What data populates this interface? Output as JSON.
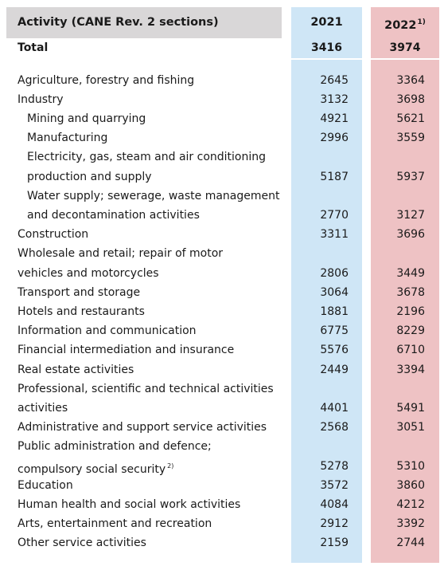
{
  "header": {
    "label": "Activity (CANE Rev. 2 sections)",
    "year_2021": "2021",
    "year_2022": "2022",
    "year_2022_note": "1)"
  },
  "total": {
    "label": "Total",
    "v2021": "3416",
    "v2022": "3974"
  },
  "rows": [
    {
      "lines": [
        "Agriculture, forestry and fishing"
      ],
      "indent": false,
      "note": "",
      "v2021": "2645",
      "v2022": "3364"
    },
    {
      "lines": [
        "Industry"
      ],
      "indent": false,
      "note": "",
      "v2021": "3132",
      "v2022": "3698"
    },
    {
      "lines": [
        "Mining and quarrying"
      ],
      "indent": true,
      "note": "",
      "v2021": "4921",
      "v2022": "5621"
    },
    {
      "lines": [
        "Manufacturing"
      ],
      "indent": true,
      "note": "",
      "v2021": "2996",
      "v2022": "3559"
    },
    {
      "lines": [
        "Electricity, gas, steam and air conditioning",
        "production and supply"
      ],
      "indent": true,
      "note": "",
      "v2021": "5187",
      "v2022": "5937"
    },
    {
      "lines": [
        "Water supply; sewerage, waste management",
        "and decontamination activities"
      ],
      "indent": true,
      "note": "",
      "v2021": "2770",
      "v2022": "3127"
    },
    {
      "lines": [
        "Construction"
      ],
      "indent": false,
      "note": "",
      "v2021": "3311",
      "v2022": "3696"
    },
    {
      "lines": [
        "Wholesale and retail; repair of motor",
        "vehicles and motorcycles"
      ],
      "indent": false,
      "note": "",
      "v2021": "2806",
      "v2022": "3449"
    },
    {
      "lines": [
        "Transport and storage"
      ],
      "indent": false,
      "note": "",
      "v2021": "3064",
      "v2022": "3678"
    },
    {
      "lines": [
        "Hotels and restaurants"
      ],
      "indent": false,
      "note": "",
      "v2021": "1881",
      "v2022": "2196"
    },
    {
      "lines": [
        "Information and communication"
      ],
      "indent": false,
      "note": "",
      "v2021": "6775",
      "v2022": "8229"
    },
    {
      "lines": [
        "Financial intermediation and insurance"
      ],
      "indent": false,
      "note": "",
      "v2021": "5576",
      "v2022": "6710"
    },
    {
      "lines": [
        "Real estate activities"
      ],
      "indent": false,
      "note": "",
      "v2021": "2449",
      "v2022": "3394"
    },
    {
      "lines": [
        "Professional, scientific and technical activities",
        "activities"
      ],
      "indent": false,
      "note": "",
      "v2021": "4401",
      "v2022": "5491"
    },
    {
      "lines": [
        "Administrative and support service activities"
      ],
      "indent": false,
      "note": "",
      "v2021": "2568",
      "v2022": "3051"
    },
    {
      "lines": [
        "Public administration and defence;",
        "compulsory social security"
      ],
      "indent": false,
      "note": "2)",
      "v2021": "5278",
      "v2022": "5310"
    },
    {
      "lines": [
        "Education"
      ],
      "indent": false,
      "note": "",
      "v2021": "3572",
      "v2022": "3860"
    },
    {
      "lines": [
        "Human health and social work activities"
      ],
      "indent": false,
      "note": "",
      "v2021": "4084",
      "v2022": "4212"
    },
    {
      "lines": [
        "Arts, entertainment and recreation"
      ],
      "indent": false,
      "note": "",
      "v2021": "2912",
      "v2022": "3392"
    },
    {
      "lines": [
        "Other service activities"
      ],
      "indent": false,
      "note": "",
      "v2021": "2159",
      "v2022": "2744"
    }
  ],
  "colors": {
    "header_bg": "#d9d7d8",
    "col_2021_bg": "#cfe6f6",
    "col_2022_bg": "#eec2c4"
  }
}
